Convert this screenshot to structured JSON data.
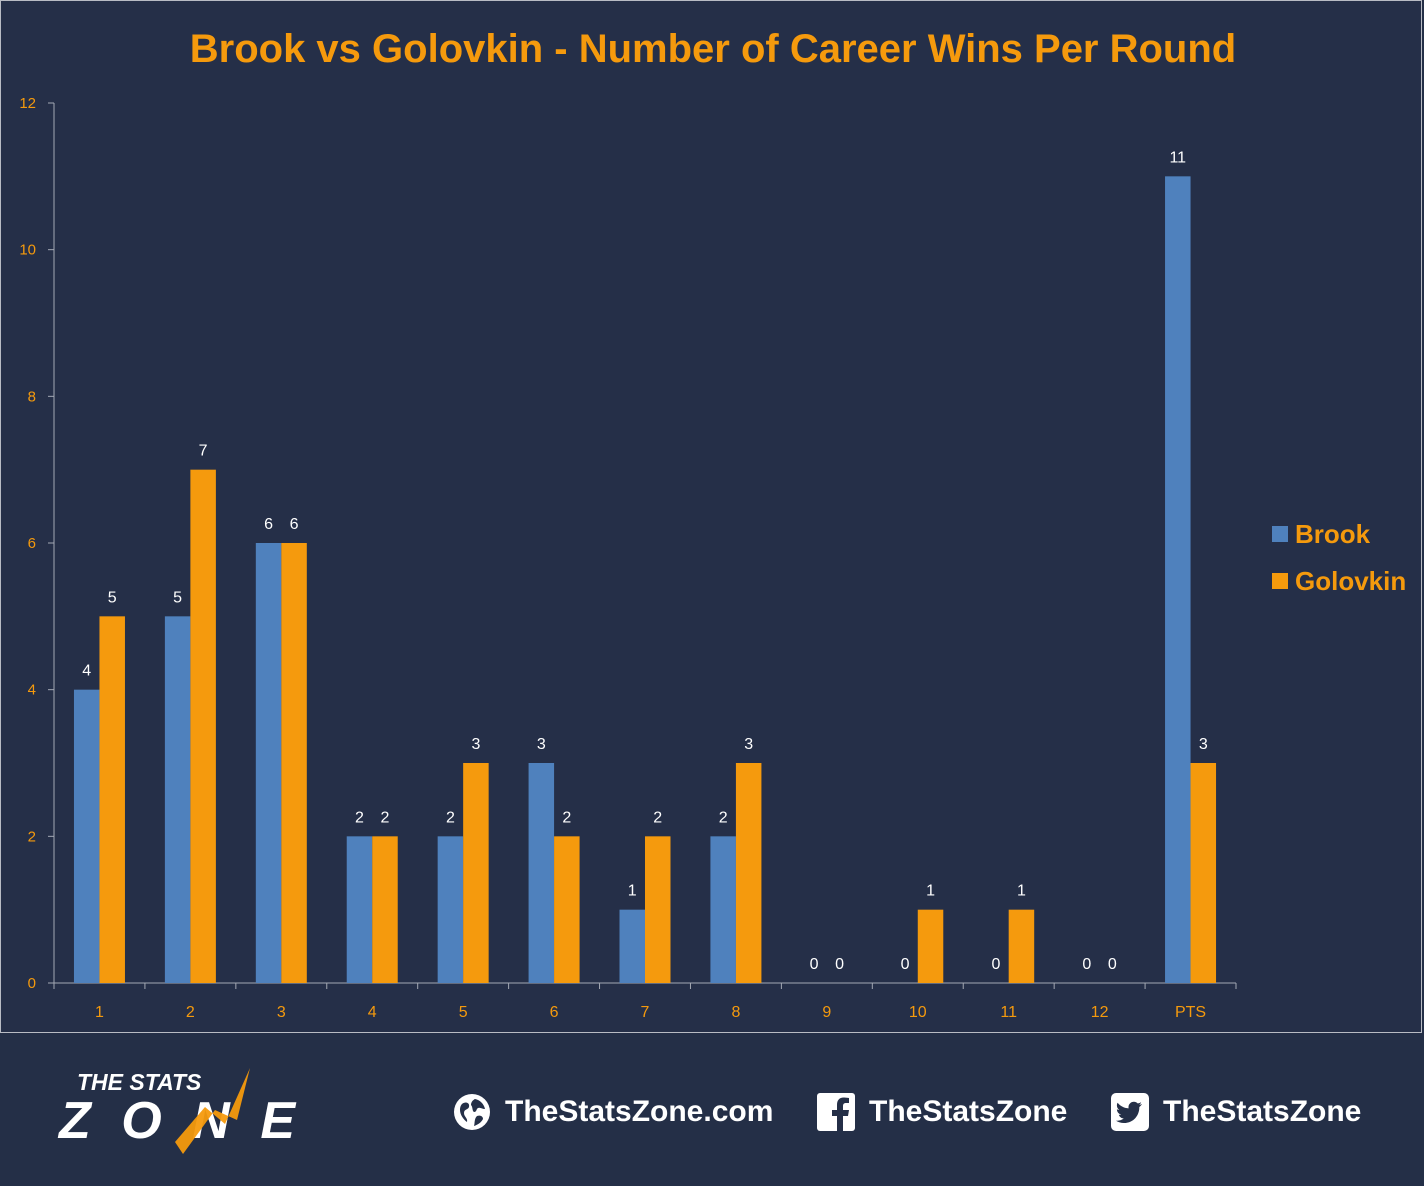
{
  "chart_data": {
    "type": "bar",
    "title": "Brook vs Golovkin - Number of Career Wins Per Round",
    "categories": [
      "1",
      "2",
      "3",
      "4",
      "5",
      "6",
      "7",
      "8",
      "9",
      "10",
      "11",
      "12",
      "PTS"
    ],
    "series": [
      {
        "name": "Brook",
        "color": "#4f81bd",
        "values": [
          4,
          5,
          6,
          2,
          2,
          3,
          1,
          2,
          0,
          0,
          0,
          0,
          11
        ]
      },
      {
        "name": "Golovkin",
        "color": "#f59a0d",
        "values": [
          5,
          7,
          6,
          2,
          3,
          2,
          2,
          3,
          0,
          1,
          1,
          0,
          3
        ]
      }
    ],
    "ylim": [
      0,
      12
    ],
    "yticks": [
      0,
      2,
      4,
      6,
      8,
      10,
      12
    ],
    "xlabel": "",
    "ylabel": "",
    "legend": "right",
    "grid": false
  },
  "colors": {
    "background": "#252f48",
    "title": "#f59a0d",
    "axis_labels": "#f59a0d",
    "data_labels": "#ffffff"
  },
  "footer": {
    "logo_top": "THE STATS",
    "logo_bottom": "ZONE",
    "website": "TheStatsZone.com",
    "facebook": "TheStatsZone",
    "twitter": "TheStatsZone",
    "icons": [
      "globe-icon",
      "facebook-icon",
      "twitter-icon"
    ]
  }
}
